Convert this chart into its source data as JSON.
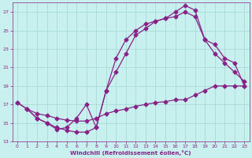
{
  "xlabel": "Windchill (Refroidissement éolien,°C)",
  "xlim_min": -0.5,
  "xlim_max": 23.5,
  "ylim_min": 13,
  "ylim_max": 28,
  "xticks": [
    0,
    1,
    2,
    3,
    4,
    5,
    6,
    7,
    8,
    9,
    10,
    11,
    12,
    13,
    14,
    15,
    16,
    17,
    18,
    19,
    20,
    21,
    22,
    23
  ],
  "yticks": [
    13,
    15,
    17,
    19,
    21,
    23,
    25,
    27
  ],
  "bg_color": "#c8f0ee",
  "line_color": "#882288",
  "grid_color": "#a8dada",
  "curve1_x": [
    0,
    1,
    2,
    3,
    4,
    5,
    6,
    7,
    8,
    9,
    10,
    11,
    12,
    13,
    14,
    15,
    16,
    17,
    18,
    19,
    20,
    21,
    22,
    23
  ],
  "curve1_y": [
    17.2,
    16.5,
    15.5,
    15.0,
    14.5,
    14.2,
    14.0,
    14.0,
    14.5,
    18.5,
    20.5,
    22.5,
    24.5,
    25.2,
    26.0,
    26.3,
    27.0,
    27.7,
    27.2,
    24.0,
    22.5,
    21.5,
    20.5,
    19.5
  ],
  "curve2_x": [
    1,
    2,
    3,
    4,
    5,
    6,
    7,
    8,
    9,
    10,
    11,
    12,
    13,
    14,
    15,
    16,
    17,
    18,
    19,
    20,
    21,
    22,
    23
  ],
  "curve2_y": [
    16.5,
    15.5,
    15.0,
    14.3,
    14.5,
    15.5,
    17.0,
    14.5,
    18.5,
    22.0,
    24.0,
    25.0,
    25.7,
    26.0,
    26.3,
    26.5,
    27.0,
    26.5,
    24.0,
    23.5,
    22.0,
    21.5,
    19.0
  ],
  "curve3_x": [
    0,
    1,
    2,
    3,
    4,
    5,
    6,
    7,
    8,
    9,
    10,
    11,
    12,
    13,
    14,
    15,
    16,
    17,
    18,
    19,
    20,
    21,
    22,
    23
  ],
  "curve3_y": [
    17.2,
    16.5,
    16.0,
    15.8,
    15.5,
    15.3,
    15.2,
    15.2,
    15.5,
    16.0,
    16.3,
    16.5,
    16.8,
    17.0,
    17.2,
    17.3,
    17.5,
    17.5,
    18.0,
    18.5,
    19.0,
    19.0,
    19.0,
    19.0
  ]
}
